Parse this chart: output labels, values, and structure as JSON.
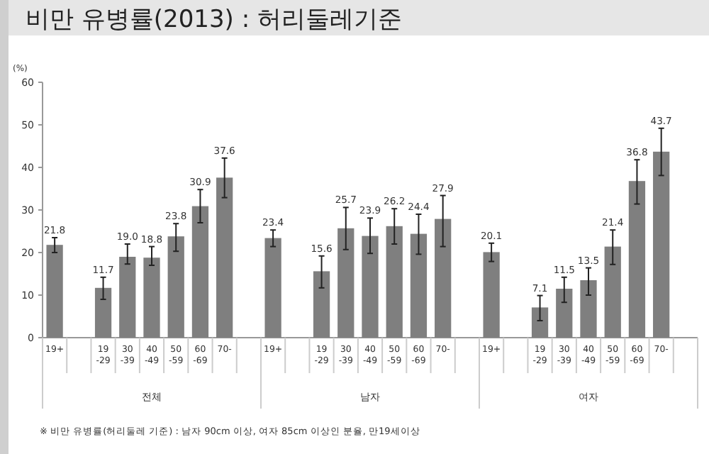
{
  "chart_data": {
    "type": "bar",
    "title": "비만 유병률(2013) : 허리둘레기준",
    "ylabel": "(%)",
    "categories": [
      "19+",
      null,
      "19\n-29",
      "30\n-39",
      "40\n-49",
      "50\n-59",
      "60\n-69",
      "70-",
      null,
      "19+",
      null,
      "19\n-29",
      "30\n-39",
      "40\n-49",
      "50\n-59",
      "60\n-69",
      "70-",
      null,
      "19+",
      null,
      "19\n-29",
      "30\n-39",
      "40\n-49",
      "50\n-59",
      "60\n-69",
      "70-",
      null
    ],
    "values": [
      21.8,
      null,
      11.7,
      19.0,
      18.8,
      23.8,
      30.9,
      37.6,
      null,
      23.4,
      null,
      15.6,
      25.7,
      23.9,
      26.2,
      24.4,
      27.9,
      null,
      20.1,
      null,
      7.1,
      11.5,
      13.5,
      21.4,
      36.8,
      43.7,
      null
    ],
    "errors": [
      [
        20.0,
        23.5
      ],
      null,
      [
        9.0,
        14.2
      ],
      [
        17.3,
        22.0
      ],
      [
        17.0,
        21.4
      ],
      [
        20.3,
        26.8
      ],
      [
        27.0,
        34.8
      ],
      [
        32.9,
        42.2
      ],
      null,
      [
        21.4,
        25.3
      ],
      null,
      [
        11.7,
        19.2
      ],
      [
        20.7,
        30.6
      ],
      [
        19.8,
        28.1
      ],
      [
        22.0,
        30.3
      ],
      [
        19.6,
        29.0
      ],
      [
        21.4,
        33.4
      ],
      null,
      [
        17.9,
        22.2
      ],
      null,
      [
        4.0,
        9.9
      ],
      [
        8.3,
        14.2
      ],
      [
        10.0,
        16.4
      ],
      [
        17.2,
        25.3
      ],
      [
        31.4,
        41.8
      ],
      [
        38.1,
        49.2
      ],
      null
    ],
    "value_labels": [
      "21.8",
      null,
      "11.7",
      "19.0",
      "18.8",
      "23.8",
      "30.9",
      "37.6",
      null,
      "23.4",
      null,
      "15.6",
      "25.7",
      "23.9",
      "26.2",
      "24.4",
      "27.9",
      null,
      "20.1",
      null,
      "7.1",
      "11.5",
      "13.5",
      "21.4",
      "36.8",
      "43.7",
      null
    ],
    "color": "#7f7f7f",
    "ylim": [
      0,
      60
    ],
    "yticks": [
      0,
      10,
      20,
      30,
      40,
      50,
      60
    ],
    "annotations": [
      "전체",
      "남자",
      "여자",
      "※ 비만 유병률(허리둘레 기준) : 남자 90cm 이상, 여자 85cm 이상인 분율, 만19세이상"
    ]
  }
}
